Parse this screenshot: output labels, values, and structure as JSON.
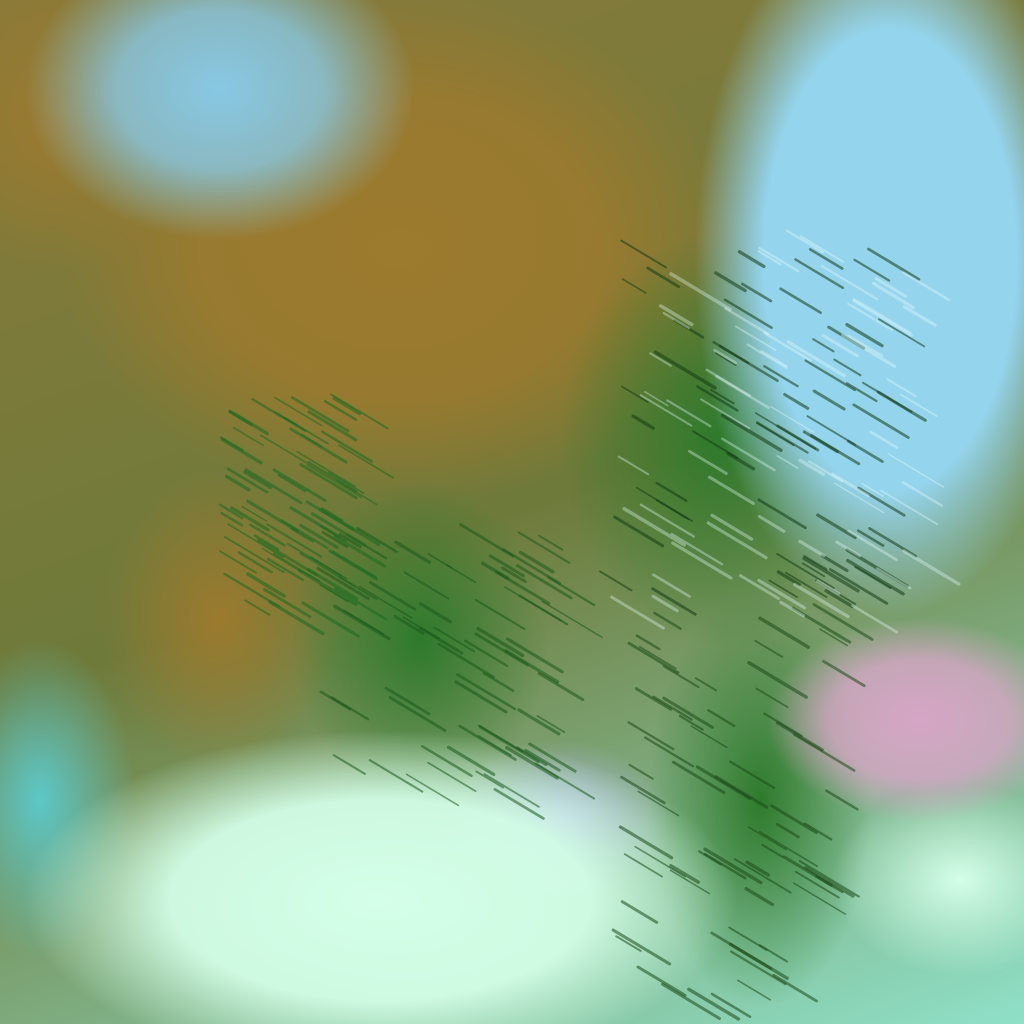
{
  "image": {
    "palette": {
      "dust_brown": "#9c7a2e",
      "vegetation_green": "#2e7a2c",
      "ice_cyan": "#94d4ec",
      "bright_mint": "#d4ffe8",
      "pink": "#d6a6c6",
      "light_blue": "#88c8e4"
    }
  }
}
